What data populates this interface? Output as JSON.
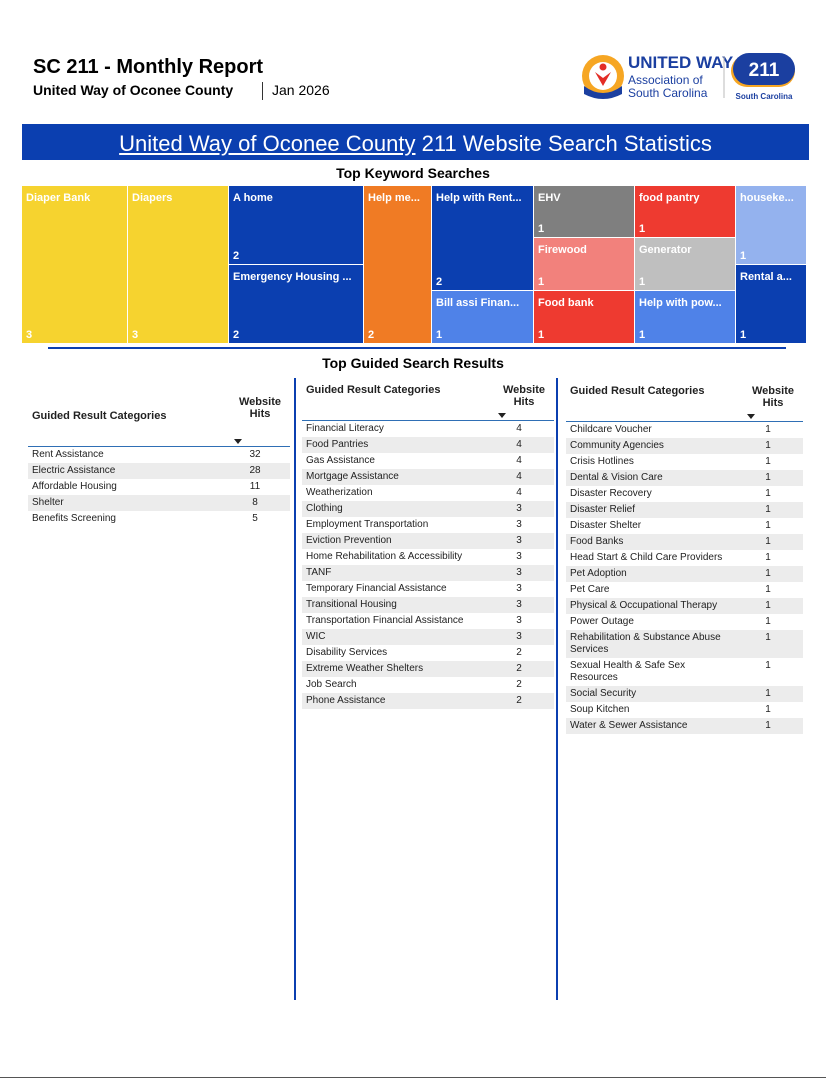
{
  "header": {
    "title": "SC 211 - Monthly Report",
    "organization": "United Way of Oconee County",
    "date": "Jan 2026",
    "logo": {
      "name": "UNITED WAY",
      "line1": "Association of",
      "line2": "South Carolina",
      "badge": "211",
      "badge_sub": "South Carolina"
    }
  },
  "banner": {
    "prefix": "United Way of Oconee County",
    "rest": "211 Website Search Statistics"
  },
  "treemap": {
    "title": "Top Keyword Searches",
    "tiles": [
      {
        "label": "Diaper Bank",
        "value": 3,
        "color": "#f6d32f"
      },
      {
        "label": "Diapers",
        "value": 3,
        "color": "#f6d32f"
      },
      {
        "label": "A home",
        "value": 2,
        "color": "#0b3fb0"
      },
      {
        "label": "Emergency Housing ...",
        "value": 2,
        "color": "#0b3fb0"
      },
      {
        "label": "Help me...",
        "value": 2,
        "color": "#f07b24"
      },
      {
        "label": "Help with Rent...",
        "value": 2,
        "color": "#0b3fb0"
      },
      {
        "label": "Bill assi Finan...",
        "value": 1,
        "color": "#4f82e8"
      },
      {
        "label": "EHV",
        "value": 1,
        "color": "#7f7f7f"
      },
      {
        "label": "Firewood",
        "value": 1,
        "color": "#f2817c"
      },
      {
        "label": "Food bank",
        "value": 1,
        "color": "#ee3a30"
      },
      {
        "label": "food pantry",
        "value": 1,
        "color": "#ee3a30"
      },
      {
        "label": "Generator",
        "value": 1,
        "color": "#bfbfbf"
      },
      {
        "label": "Help with pow...",
        "value": 1,
        "color": "#4f82e8"
      },
      {
        "label": "houseke...",
        "value": 1,
        "color": "#94b2ee"
      },
      {
        "label": "Rental a...",
        "value": 1,
        "color": "#0b3fb0"
      }
    ]
  },
  "guided": {
    "title": "Top Guided Search Results",
    "tables": [
      {
        "headers": [
          "Guided Result Categories",
          "Website Hits"
        ],
        "rows": [
          [
            "Rent Assistance",
            32
          ],
          [
            "Electric Assistance",
            28
          ],
          [
            "Affordable Housing",
            11
          ],
          [
            "Shelter",
            8
          ],
          [
            "Benefits Screening",
            5
          ]
        ]
      },
      {
        "headers": [
          "Guided Result Categories",
          "Website Hits"
        ],
        "rows": [
          [
            "Financial Literacy",
            4
          ],
          [
            "Food Pantries",
            4
          ],
          [
            "Gas Assistance",
            4
          ],
          [
            "Mortgage Assistance",
            4
          ],
          [
            "Weatherization",
            4
          ],
          [
            "Clothing",
            3
          ],
          [
            "Employment Transportation",
            3
          ],
          [
            "Eviction Prevention",
            3
          ],
          [
            "Home Rehabilitation & Accessibility",
            3
          ],
          [
            "TANF",
            3
          ],
          [
            "Temporary Financial Assistance",
            3
          ],
          [
            "Transitional Housing",
            3
          ],
          [
            "Transportation Financial Assistance",
            3
          ],
          [
            "WIC",
            3
          ],
          [
            "Disability Services",
            2
          ],
          [
            "Extreme Weather Shelters",
            2
          ],
          [
            "Job Search",
            2
          ],
          [
            "Phone Assistance",
            2
          ]
        ]
      },
      {
        "headers": [
          "Guided Result Categories",
          "Website Hits"
        ],
        "rows": [
          [
            "Childcare Voucher",
            1
          ],
          [
            "Community Agencies",
            1
          ],
          [
            "Crisis Hotlines",
            1
          ],
          [
            "Dental & Vision Care",
            1
          ],
          [
            "Disaster Recovery",
            1
          ],
          [
            "Disaster Relief",
            1
          ],
          [
            "Disaster Shelter",
            1
          ],
          [
            "Food Banks",
            1
          ],
          [
            "Head Start & Child Care Providers",
            1
          ],
          [
            "Pet Adoption",
            1
          ],
          [
            "Pet Care",
            1
          ],
          [
            "Physical & Occupational Therapy",
            1
          ],
          [
            "Power Outage",
            1
          ],
          [
            "Rehabilitation & Substance Abuse Services",
            1
          ],
          [
            "Sexual Health & Safe Sex Resources",
            1
          ],
          [
            "Social Security",
            1
          ],
          [
            "Soup Kitchen",
            1
          ],
          [
            "Water & Sewer Assistance",
            1
          ]
        ]
      }
    ]
  }
}
